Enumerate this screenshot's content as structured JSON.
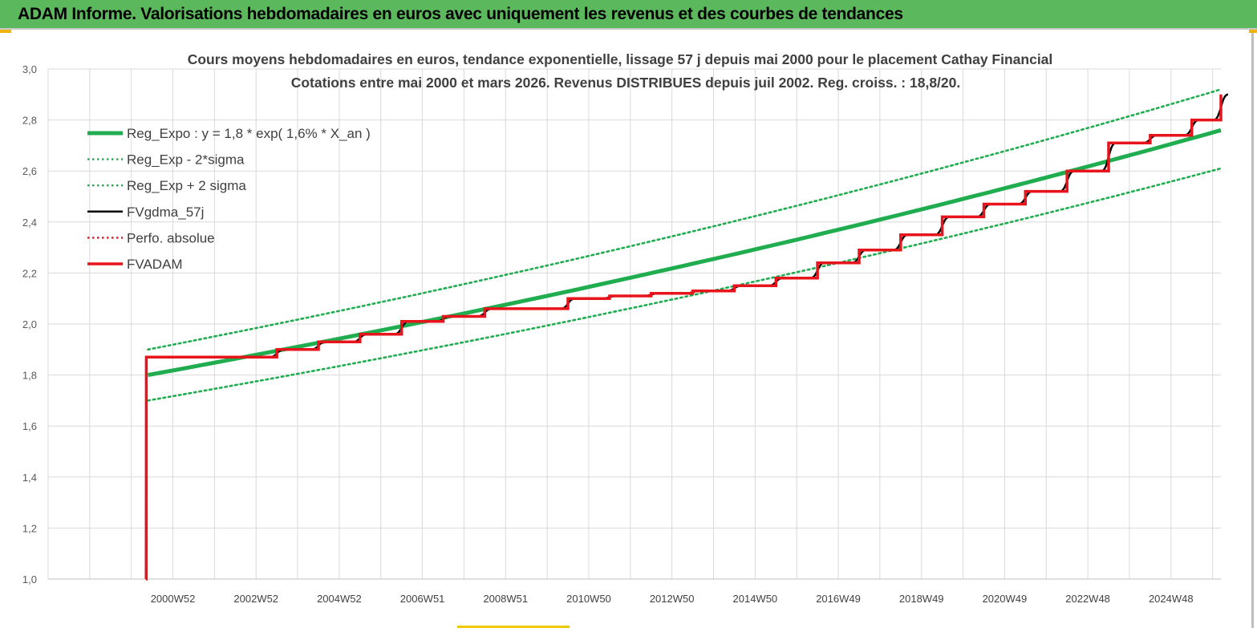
{
  "header": {
    "title": "ADAM Informe. Valorisations hebdomadaires en euros avec uniquement les revenus et des courbes de tendances"
  },
  "colors": {
    "header_bg": "#5cb85c",
    "trend_green": "#1fad4f",
    "fvadam_red": "#e8141b",
    "fvgdma_black": "#000000",
    "grid": "#d9d9d9"
  },
  "chart_data": {
    "type": "line",
    "title": "Cours moyens hebdomadaires en euros, tendance exponentielle, lissage 57 j depuis mai 2000 pour le placement Cathay Financial",
    "subtitle": "Cotations entre mai 2000 et mars 2026.  Revenus DISTRIBUES depuis juil 2002.  Reg. croiss. : 18,8/20.",
    "xlabel": "",
    "ylabel": "",
    "ylim": [
      1.0,
      3.0
    ],
    "yticks": [
      "1,0",
      "1,2",
      "1,4",
      "1,6",
      "1,8",
      "2,0",
      "2,2",
      "2,4",
      "2,6",
      "2,8",
      "3,0"
    ],
    "xlim": [
      1998.0,
      2026.2
    ],
    "xticks": [
      {
        "x": 2001.0,
        "label": "2000W52"
      },
      {
        "x": 2003.0,
        "label": "2002W52"
      },
      {
        "x": 2005.0,
        "label": "2004W52"
      },
      {
        "x": 2007.0,
        "label": "2006W51"
      },
      {
        "x": 2009.0,
        "label": "2008W51"
      },
      {
        "x": 2011.0,
        "label": "2010W50"
      },
      {
        "x": 2013.0,
        "label": "2012W50"
      },
      {
        "x": 2015.0,
        "label": "2014W50"
      },
      {
        "x": 2017.0,
        "label": "2016W49"
      },
      {
        "x": 2019.0,
        "label": "2018W49"
      },
      {
        "x": 2021.0,
        "label": "2020W49"
      },
      {
        "x": 2023.0,
        "label": "2022W48"
      },
      {
        "x": 2025.0,
        "label": "2024W48"
      }
    ],
    "grid": true,
    "legend_position": "top-left",
    "series": [
      {
        "name": "Reg_Expo : y = 1,8 * exp( 1,6% *  X_an )",
        "style": "solid-thick",
        "color": "#1fad4f",
        "x": [
          2000.4,
          2026.2
        ],
        "y": [
          1.8,
          2.76
        ],
        "curve": "exponential"
      },
      {
        "name": "Reg_Exp - 2*sigma",
        "style": "dotted",
        "color": "#1fad4f",
        "x": [
          2000.4,
          2026.2
        ],
        "y": [
          1.7,
          2.61
        ],
        "curve": "exponential"
      },
      {
        "name": "Reg_Exp + 2 sigma",
        "style": "dotted",
        "color": "#1fad4f",
        "x": [
          2000.4,
          2026.2
        ],
        "y": [
          1.9,
          2.92
        ],
        "curve": "exponential"
      },
      {
        "name": "FVgdma_57j",
        "style": "solid",
        "color": "#000000",
        "x": [
          2000.35,
          2000.36,
          2002.5,
          2003.5,
          2004.5,
          2005.5,
          2006.5,
          2007.5,
          2008.5,
          2010.5,
          2011.5,
          2012.5,
          2013.5,
          2014.5,
          2015.5,
          2016.5,
          2017.5,
          2018.5,
          2019.5,
          2020.5,
          2021.5,
          2022.5,
          2023.5,
          2024.5,
          2025.5,
          2026.2
        ],
        "y": [
          1.0,
          1.87,
          1.87,
          1.9,
          1.93,
          1.96,
          2.01,
          2.03,
          2.06,
          2.1,
          2.11,
          2.12,
          2.13,
          2.15,
          2.18,
          2.24,
          2.29,
          2.35,
          2.42,
          2.47,
          2.52,
          2.6,
          2.71,
          2.74,
          2.8,
          2.9
        ]
      },
      {
        "name": "Perfo. absolue",
        "style": "dotted",
        "color": "#e8141b",
        "x": [],
        "y": []
      },
      {
        "name": "FVADAM",
        "style": "step-thick",
        "color": "#e8141b",
        "x": [
          2000.35,
          2000.36,
          2002.5,
          2003.5,
          2004.5,
          2005.5,
          2006.5,
          2007.5,
          2008.5,
          2010.5,
          2011.5,
          2012.5,
          2013.5,
          2014.5,
          2015.5,
          2016.5,
          2017.5,
          2018.5,
          2019.5,
          2020.5,
          2021.5,
          2022.5,
          2023.5,
          2024.5,
          2025.5,
          2026.2
        ],
        "y": [
          1.0,
          1.87,
          1.87,
          1.9,
          1.93,
          1.96,
          2.01,
          2.03,
          2.06,
          2.1,
          2.11,
          2.12,
          2.13,
          2.15,
          2.18,
          2.24,
          2.29,
          2.35,
          2.42,
          2.47,
          2.52,
          2.6,
          2.71,
          2.74,
          2.8,
          2.9
        ]
      }
    ]
  }
}
